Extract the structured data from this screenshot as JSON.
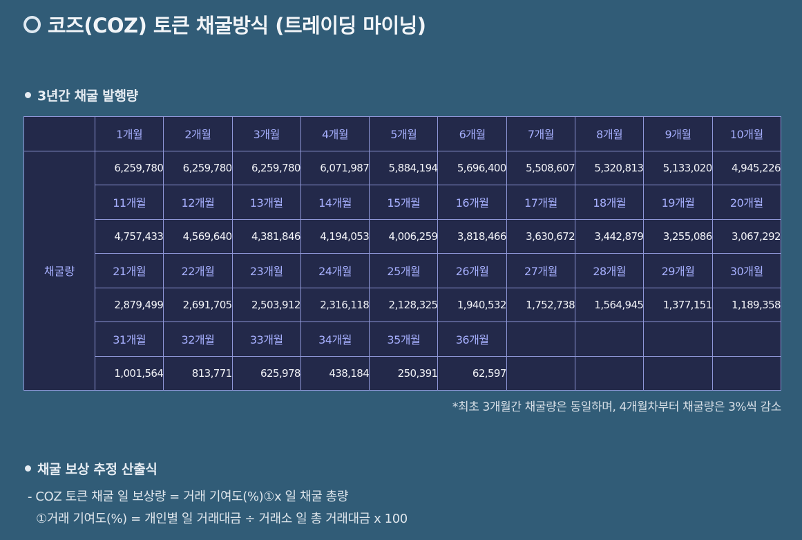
{
  "title": "코즈(COZ) 토큰 채굴방식 (트레이딩 마이닝)",
  "section_issuance": "3년간 채굴 발행량",
  "table": {
    "row_label": "채굴량",
    "blocks": [
      {
        "months": [
          "1개월",
          "2개월",
          "3개월",
          "4개월",
          "5개월",
          "6개월",
          "7개월",
          "8개월",
          "9개월",
          "10개월"
        ],
        "values": [
          "6,259,780",
          "6,259,780",
          "6,259,780",
          "6,071,987",
          "5,884,194",
          "5,696,400",
          "5,508,607",
          "5,320,813",
          "5,133,020",
          "4,945,226"
        ]
      },
      {
        "months": [
          "11개월",
          "12개월",
          "13개월",
          "14개월",
          "15개월",
          "16개월",
          "17개월",
          "18개월",
          "19개월",
          "20개월"
        ],
        "values": [
          "4,757,433",
          "4,569,640",
          "4,381,846",
          "4,194,053",
          "4,006,259",
          "3,818,466",
          "3,630,672",
          "3,442,879",
          "3,255,086",
          "3,067,292"
        ]
      },
      {
        "months": [
          "21개월",
          "22개월",
          "23개월",
          "24개월",
          "25개월",
          "26개월",
          "27개월",
          "28개월",
          "29개월",
          "30개월"
        ],
        "values": [
          "2,879,499",
          "2,691,705",
          "2,503,912",
          "2,316,118",
          "2,128,325",
          "1,940,532",
          "1,752,738",
          "1,564,945",
          "1,377,151",
          "1,189,358"
        ]
      },
      {
        "months": [
          "31개월",
          "32개월",
          "33개월",
          "34개월",
          "35개월",
          "36개월",
          "",
          "",
          "",
          ""
        ],
        "values": [
          "1,001,564",
          "813,771",
          "625,978",
          "438,184",
          "250,391",
          "62,597",
          "",
          "",
          "",
          ""
        ]
      }
    ]
  },
  "note": "*최초 3개월간 채굴량은 동일하며, 4개월차부터 채굴량은 3%씩 감소",
  "section_reward": "채굴 보상 추정 산출식",
  "formula_1": "- COZ 토큰 채굴 일 보상량 = 거래 기여도(%)①x 일 채굴 총량",
  "formula_2": "①거래 기여도(%) = 개인별 일 거래대금 ÷ 거래소 일 총 거래대금 x 100"
}
